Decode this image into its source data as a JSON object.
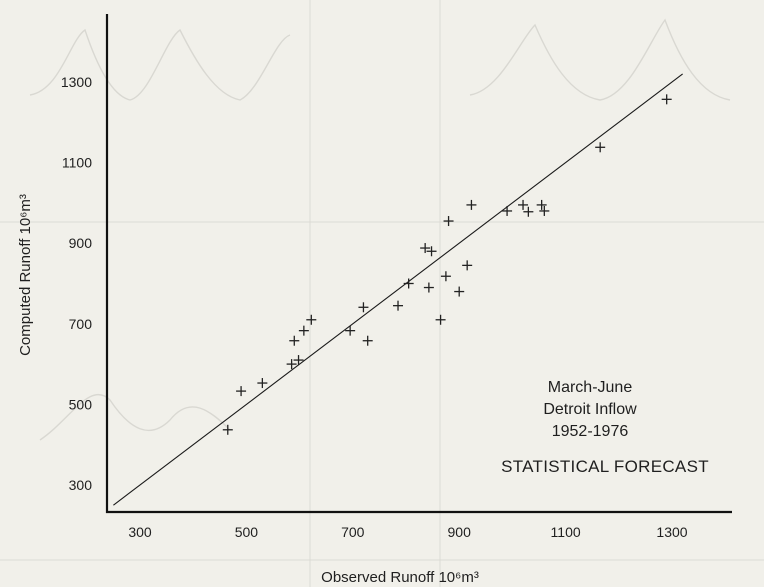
{
  "chart_data": {
    "type": "scatter",
    "xlabel": "Observed Runoff 10⁶m³",
    "ylabel": "Computed Runoff 10⁶m³",
    "xlim": [
      250,
      1400
    ],
    "ylim": [
      250,
      1450
    ],
    "x_ticks": [
      300,
      500,
      700,
      900,
      1100,
      1300
    ],
    "y_ticks": [
      300,
      500,
      700,
      900,
      1100,
      1300
    ],
    "annotation_lines": [
      "March-June",
      "Detroit Inflow",
      "1952-1976"
    ],
    "annotation_title": "STATISTICAL FORECAST",
    "fit_line": {
      "x": [
        250,
        1320
      ],
      "y": [
        250,
        1320
      ]
    },
    "marker": "+",
    "points": [
      {
        "x": 465,
        "y": 437
      },
      {
        "x": 490,
        "y": 533
      },
      {
        "x": 530,
        "y": 553
      },
      {
        "x": 585,
        "y": 600
      },
      {
        "x": 590,
        "y": 658
      },
      {
        "x": 598,
        "y": 610
      },
      {
        "x": 608,
        "y": 683
      },
      {
        "x": 622,
        "y": 710
      },
      {
        "x": 695,
        "y": 683
      },
      {
        "x": 720,
        "y": 741
      },
      {
        "x": 728,
        "y": 658
      },
      {
        "x": 785,
        "y": 745
      },
      {
        "x": 805,
        "y": 800
      },
      {
        "x": 836,
        "y": 888
      },
      {
        "x": 843,
        "y": 790
      },
      {
        "x": 848,
        "y": 880
      },
      {
        "x": 865,
        "y": 710
      },
      {
        "x": 875,
        "y": 818
      },
      {
        "x": 880,
        "y": 955
      },
      {
        "x": 900,
        "y": 780
      },
      {
        "x": 915,
        "y": 845
      },
      {
        "x": 923,
        "y": 995
      },
      {
        "x": 990,
        "y": 980
      },
      {
        "x": 1020,
        "y": 995
      },
      {
        "x": 1030,
        "y": 978
      },
      {
        "x": 1055,
        "y": 995
      },
      {
        "x": 1060,
        "y": 980
      },
      {
        "x": 1165,
        "y": 1138
      },
      {
        "x": 1290,
        "y": 1257
      }
    ]
  }
}
